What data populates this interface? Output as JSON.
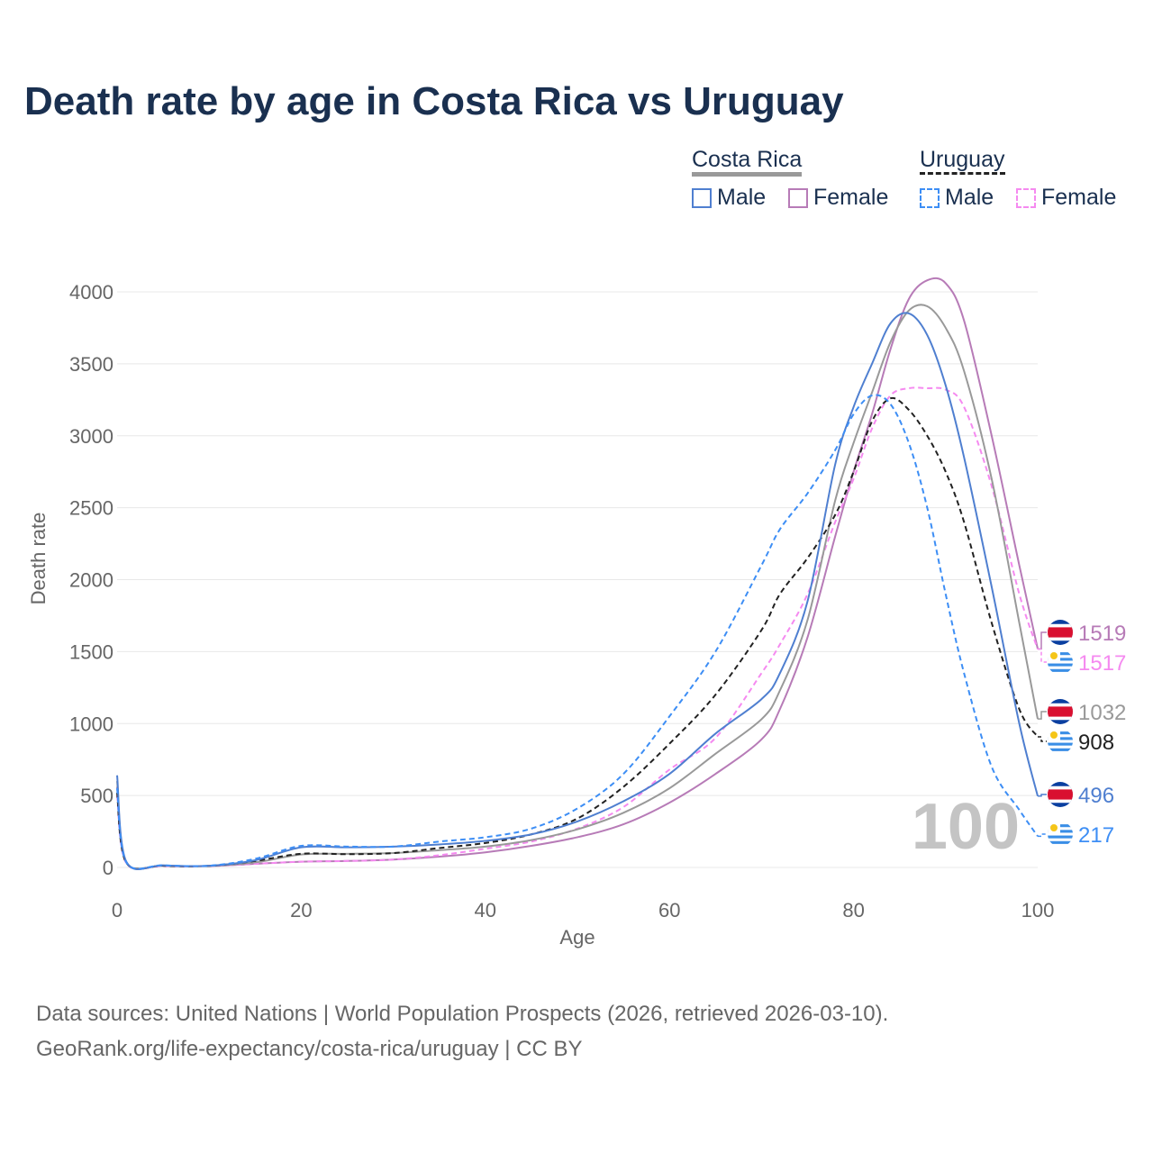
{
  "title": "Death rate by age in Costa Rica vs Uruguay",
  "legend": {
    "groups": [
      {
        "name": "Costa Rica",
        "line_color": "#999999",
        "dashed": false,
        "items": [
          {
            "label": "Male",
            "color": "#4f7fd0"
          },
          {
            "label": "Female",
            "color": "#b77bb7"
          }
        ]
      },
      {
        "name": "Uruguay",
        "line_color": "#222222",
        "dashed": true,
        "items": [
          {
            "label": "Male",
            "color": "#3d8ef5"
          },
          {
            "label": "Female",
            "color": "#f58af0"
          }
        ]
      }
    ]
  },
  "footer": {
    "line1": "Data sources: United Nations | World Population Prospects (2026, retrieved 2026-03-10).",
    "line2": "GeoRank.org/life-expectancy/costa-rica/uruguay | CC BY"
  },
  "chart_data": {
    "type": "line",
    "title": "Death rate by age in Costa Rica vs Uruguay",
    "xlabel": "Age",
    "ylabel": "Death rate",
    "xlim": [
      0,
      100
    ],
    "ylim": [
      0,
      4000
    ],
    "xticks": [
      "0",
      "20",
      "40",
      "60",
      "80",
      "100"
    ],
    "yticks": [
      "0",
      "500",
      "1000",
      "1500",
      "2000",
      "2500",
      "3000",
      "3500",
      "4000"
    ],
    "grid": true,
    "watermark": "100",
    "x": [
      0,
      1,
      5,
      10,
      15,
      20,
      25,
      30,
      35,
      40,
      45,
      50,
      55,
      60,
      65,
      70,
      72,
      75,
      78,
      80,
      82,
      84,
      86,
      88,
      90,
      92,
      95,
      98,
      100
    ],
    "series": [
      {
        "name": "Costa Rica Female",
        "color": "#b77bb7",
        "dashed": false,
        "flag": "costa-rica",
        "end_label": "1519",
        "values": [
          560,
          35,
          12,
          10,
          25,
          40,
          45,
          55,
          75,
          105,
          150,
          210,
          300,
          450,
          650,
          890,
          1100,
          1600,
          2300,
          2750,
          3150,
          3600,
          3950,
          4080,
          4060,
          3800,
          3000,
          2100,
          1519
        ]
      },
      {
        "name": "Uruguay Female",
        "color": "#f58af0",
        "dashed": true,
        "flag": "uruguay",
        "end_label": "1517",
        "values": [
          500,
          30,
          10,
          10,
          25,
          40,
          45,
          55,
          85,
          130,
          180,
          270,
          420,
          680,
          900,
          1350,
          1550,
          1900,
          2400,
          2700,
          3050,
          3280,
          3330,
          3330,
          3320,
          3200,
          2650,
          1900,
          1517
        ]
      },
      {
        "name": "Costa Rica",
        "color": "#999999",
        "dashed": false,
        "flag": "costa-rica",
        "end_label": "1032",
        "values": [
          600,
          38,
          13,
          11,
          35,
          90,
          95,
          100,
          120,
          145,
          190,
          265,
          380,
          550,
          790,
          1030,
          1230,
          1720,
          2550,
          2950,
          3300,
          3650,
          3870,
          3900,
          3750,
          3450,
          2700,
          1700,
          1032
        ]
      },
      {
        "name": "Uruguay",
        "color": "#222222",
        "dashed": true,
        "flag": "uruguay",
        "end_label": "908",
        "values": [
          520,
          33,
          12,
          11,
          45,
          95,
          92,
          100,
          135,
          170,
          230,
          340,
          560,
          860,
          1200,
          1650,
          1900,
          2150,
          2450,
          2750,
          3100,
          3260,
          3180,
          3000,
          2750,
          2400,
          1700,
          1100,
          908
        ]
      },
      {
        "name": "Costa Rica Male",
        "color": "#4f7fd0",
        "dashed": false,
        "flag": "costa-rica",
        "end_label": "496",
        "values": [
          640,
          40,
          15,
          12,
          50,
          140,
          140,
          145,
          160,
          185,
          230,
          320,
          460,
          650,
          930,
          1170,
          1350,
          1850,
          2800,
          3200,
          3500,
          3780,
          3850,
          3700,
          3350,
          2850,
          1950,
          1000,
          496
        ]
      },
      {
        "name": "Uruguay Male",
        "color": "#3d8ef5",
        "dashed": true,
        "flag": "uruguay",
        "end_label": "217",
        "values": [
          550,
          35,
          15,
          12,
          60,
          150,
          145,
          145,
          180,
          210,
          270,
          410,
          650,
          1050,
          1500,
          2100,
          2350,
          2600,
          2900,
          3150,
          3280,
          3220,
          2950,
          2500,
          1900,
          1350,
          700,
          400,
          217
        ]
      }
    ]
  }
}
